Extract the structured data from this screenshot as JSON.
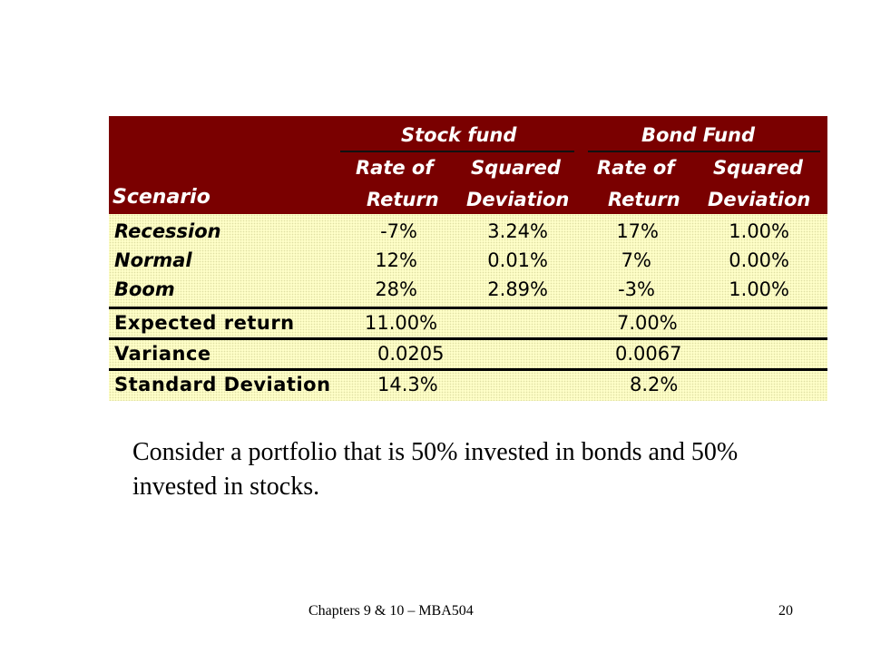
{
  "table": {
    "headers": {
      "stock_fund": "Stock fund",
      "bond_fund": "Bond Fund",
      "scenario": "Scenario",
      "stock_rate_1": "Rate of",
      "stock_rate_2": "Return",
      "stock_sq_1": "Squared",
      "stock_sq_2": "Deviation",
      "bond_rate_1": "Rate of",
      "bond_rate_2": "Return",
      "bond_sq_1": "Squared",
      "bond_sq_2": "Deviation"
    },
    "rows": [
      {
        "scenario": "Recession",
        "stock_return": "-7%",
        "stock_sq_dev": "3.24%",
        "bond_return": "17%",
        "bond_sq_dev": "1.00%"
      },
      {
        "scenario": "Normal",
        "stock_return": "12%",
        "stock_sq_dev": "0.01%",
        "bond_return": "7%",
        "bond_sq_dev": "0.00%"
      },
      {
        "scenario": "Boom",
        "stock_return": "28%",
        "stock_sq_dev": "2.89%",
        "bond_return": "-3%",
        "bond_sq_dev": "1.00%"
      }
    ],
    "summary": {
      "expected_return": {
        "label": "Expected return",
        "stock": "11.00%",
        "bond": "7.00%"
      },
      "variance": {
        "label": "Variance",
        "stock": "0.0205",
        "bond": "0.0067"
      },
      "std_dev": {
        "label": "Standard Deviation",
        "stock": "14.3%",
        "bond": "8.2%"
      }
    }
  },
  "caption": "Consider a portfolio that is 50% invested in bonds and 50% invested in stocks.",
  "footer": {
    "left": "Chapters 9 & 10 – MBA504",
    "page": "20"
  },
  "colors": {
    "header_bg": "#7a0000",
    "body_bg": "#ffffc8"
  }
}
